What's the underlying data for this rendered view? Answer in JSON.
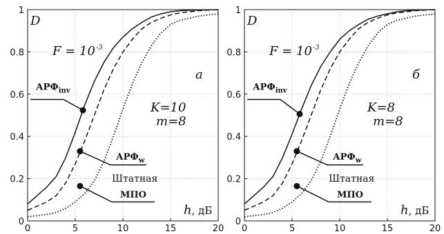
{
  "chart_data": [
    {
      "type": "line",
      "panel_letter": "а",
      "ylabel": "D",
      "xlabel_var": "h",
      "xlabel_unit": ", дБ",
      "xlim": [
        0,
        20
      ],
      "ylim": [
        0,
        1
      ],
      "xticks": [
        0,
        5,
        10,
        15,
        20
      ],
      "yticks": [
        0,
        0.2,
        0.4,
        0.6,
        0.8,
        1
      ],
      "ytick_labels": [
        "0",
        "0.2",
        "0.4",
        "0.6",
        "0.8",
        "1"
      ],
      "grid": true,
      "params": {
        "F_base": "F = 10",
        "F_exp": "-3",
        "K": "K=10",
        "m": "m=8"
      },
      "series": [
        {
          "label_main": "АРФ",
          "label_sub": "inv",
          "style": "solid",
          "x": [
            0,
            1,
            2,
            3,
            4,
            5,
            6,
            7,
            8,
            9,
            10,
            11,
            12,
            13,
            14,
            15,
            16,
            17,
            18,
            19,
            20
          ],
          "y": [
            0.08,
            0.12,
            0.16,
            0.21,
            0.3,
            0.42,
            0.55,
            0.66,
            0.75,
            0.82,
            0.87,
            0.91,
            0.94,
            0.965,
            0.98,
            0.99,
            0.995,
            0.997,
            0.998,
            0.999,
            1.0
          ]
        },
        {
          "label_main": "АРФ",
          "label_sub": "w",
          "style": "dashed",
          "x": [
            0,
            1,
            2,
            3,
            4,
            5,
            6,
            7,
            8,
            9,
            10,
            11,
            12,
            13,
            14,
            15,
            16,
            17,
            18,
            19,
            20
          ],
          "y": [
            0.05,
            0.07,
            0.09,
            0.12,
            0.18,
            0.27,
            0.38,
            0.5,
            0.62,
            0.72,
            0.8,
            0.86,
            0.91,
            0.94,
            0.96,
            0.975,
            0.985,
            0.99,
            0.995,
            0.998,
            1.0
          ]
        },
        {
          "label_main": "Штатная",
          "label_sub": "",
          "style": "dotted",
          "x": [
            0,
            1,
            2,
            3,
            4,
            5,
            6,
            7,
            8,
            9,
            10,
            11,
            12,
            13,
            14,
            15,
            16,
            17,
            18,
            19,
            20
          ],
          "y": [
            0.02,
            0.025,
            0.03,
            0.04,
            0.06,
            0.09,
            0.13,
            0.19,
            0.28,
            0.4,
            0.53,
            0.65,
            0.75,
            0.83,
            0.89,
            0.93,
            0.95,
            0.96,
            0.97,
            0.975,
            0.98
          ]
        }
      ],
      "annotation_mpo": "МПО"
    },
    {
      "type": "line",
      "panel_letter": "б",
      "ylabel": "D",
      "xlabel_var": "h",
      "xlabel_unit": ", дБ",
      "xlim": [
        0,
        20
      ],
      "ylim": [
        0,
        1
      ],
      "xticks": [
        0,
        5,
        10,
        15,
        20
      ],
      "yticks": [
        0,
        0.2,
        0.4,
        0.6,
        0.8,
        1
      ],
      "ytick_labels": [
        "0",
        "0.2",
        "0.4",
        "0.6",
        "0.8",
        "1"
      ],
      "grid": true,
      "params": {
        "F_base": "F = 10",
        "F_exp": "-3",
        "K": "K=8",
        "m": "m=8"
      },
      "series": [
        {
          "label_main": "АРФ",
          "label_sub": "inv",
          "style": "solid",
          "x": [
            0,
            1,
            2,
            3,
            4,
            5,
            6,
            7,
            8,
            9,
            10,
            11,
            12,
            13,
            14,
            15,
            16,
            17,
            18,
            19,
            20
          ],
          "y": [
            0.08,
            0.12,
            0.16,
            0.21,
            0.3,
            0.41,
            0.53,
            0.64,
            0.73,
            0.8,
            0.86,
            0.9,
            0.93,
            0.955,
            0.97,
            0.98,
            0.99,
            0.995,
            0.997,
            0.999,
            1.0
          ]
        },
        {
          "label_main": "АРФ",
          "label_sub": "w",
          "style": "dashed",
          "x": [
            0,
            1,
            2,
            3,
            4,
            5,
            6,
            7,
            8,
            9,
            10,
            11,
            12,
            13,
            14,
            15,
            16,
            17,
            18,
            19,
            20
          ],
          "y": [
            0.05,
            0.07,
            0.09,
            0.12,
            0.18,
            0.27,
            0.38,
            0.5,
            0.62,
            0.72,
            0.8,
            0.86,
            0.91,
            0.94,
            0.96,
            0.975,
            0.985,
            0.99,
            0.995,
            0.998,
            1.0
          ]
        },
        {
          "label_main": "Штатная",
          "label_sub": "",
          "style": "dotted",
          "x": [
            0,
            1,
            2,
            3,
            4,
            5,
            6,
            7,
            8,
            9,
            10,
            11,
            12,
            13,
            14,
            15,
            16,
            17,
            18,
            19,
            20
          ],
          "y": [
            0.02,
            0.025,
            0.03,
            0.04,
            0.06,
            0.09,
            0.13,
            0.19,
            0.28,
            0.4,
            0.53,
            0.65,
            0.75,
            0.83,
            0.89,
            0.93,
            0.95,
            0.96,
            0.97,
            0.975,
            0.98
          ]
        }
      ],
      "annotation_mpo": "МПО"
    }
  ]
}
